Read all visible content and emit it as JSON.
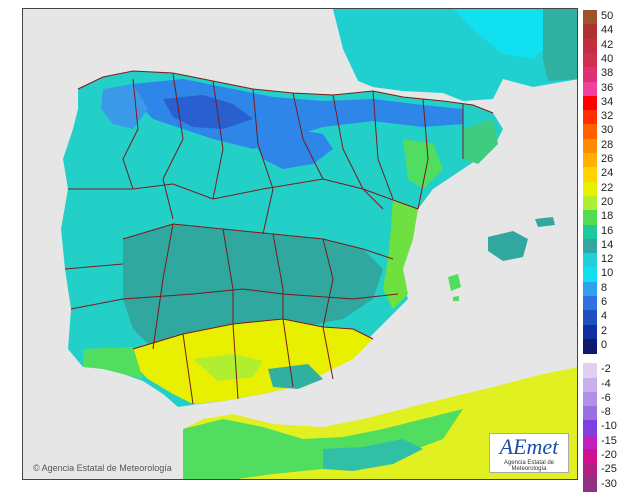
{
  "map": {
    "credit": "Agencia Estatal de Meteorología",
    "logo_text": "AEmet",
    "logo_subtitle": "Agencia Estatal de Meteorología",
    "colors": {
      "sea": "#e6e6e6",
      "base_land": "#22d0c8",
      "border_color": "#7a1a1a"
    }
  },
  "legend": [
    {
      "label": "50",
      "color": "#a0522d"
    },
    {
      "label": "44",
      "color": "#b03030"
    },
    {
      "label": "42",
      "color": "#c03040"
    },
    {
      "label": "40",
      "color": "#d03050"
    },
    {
      "label": "38",
      "color": "#e03070"
    },
    {
      "label": "36",
      "color": "#f040a0"
    },
    {
      "label": "34",
      "color": "#ff0000"
    },
    {
      "label": "32",
      "color": "#ff3000"
    },
    {
      "label": "30",
      "color": "#ff6000"
    },
    {
      "label": "28",
      "color": "#ff8c00"
    },
    {
      "label": "26",
      "color": "#ffb000"
    },
    {
      "label": "24",
      "color": "#ffd400"
    },
    {
      "label": "22",
      "color": "#e8f000"
    },
    {
      "label": "20",
      "color": "#b0ee30"
    },
    {
      "label": "18",
      "color": "#50dd50"
    },
    {
      "label": "16",
      "color": "#20c8a0"
    },
    {
      "label": "14",
      "color": "#30a8a0"
    },
    {
      "label": "12",
      "color": "#20d0d8"
    },
    {
      "label": "10",
      "color": "#10e0f0"
    },
    {
      "label": "8",
      "color": "#30a0f0"
    },
    {
      "label": "6",
      "color": "#3070e0"
    },
    {
      "label": "4",
      "color": "#2050c0"
    },
    {
      "label": "2",
      "color": "#1030a0"
    },
    {
      "label": "0",
      "color": "#101870"
    },
    {
      "label": "-2",
      "color": "#e0d0f0"
    },
    {
      "label": "-4",
      "color": "#c8b0ec"
    },
    {
      "label": "-6",
      "color": "#b090e8"
    },
    {
      "label": "-8",
      "color": "#9870e0"
    },
    {
      "label": "-10",
      "color": "#8040e0"
    },
    {
      "label": "-15",
      "color": "#c020c0"
    },
    {
      "label": "-20",
      "color": "#d01090"
    },
    {
      "label": "-25",
      "color": "#b02080"
    },
    {
      "label": "-30",
      "color": "#903080"
    }
  ]
}
